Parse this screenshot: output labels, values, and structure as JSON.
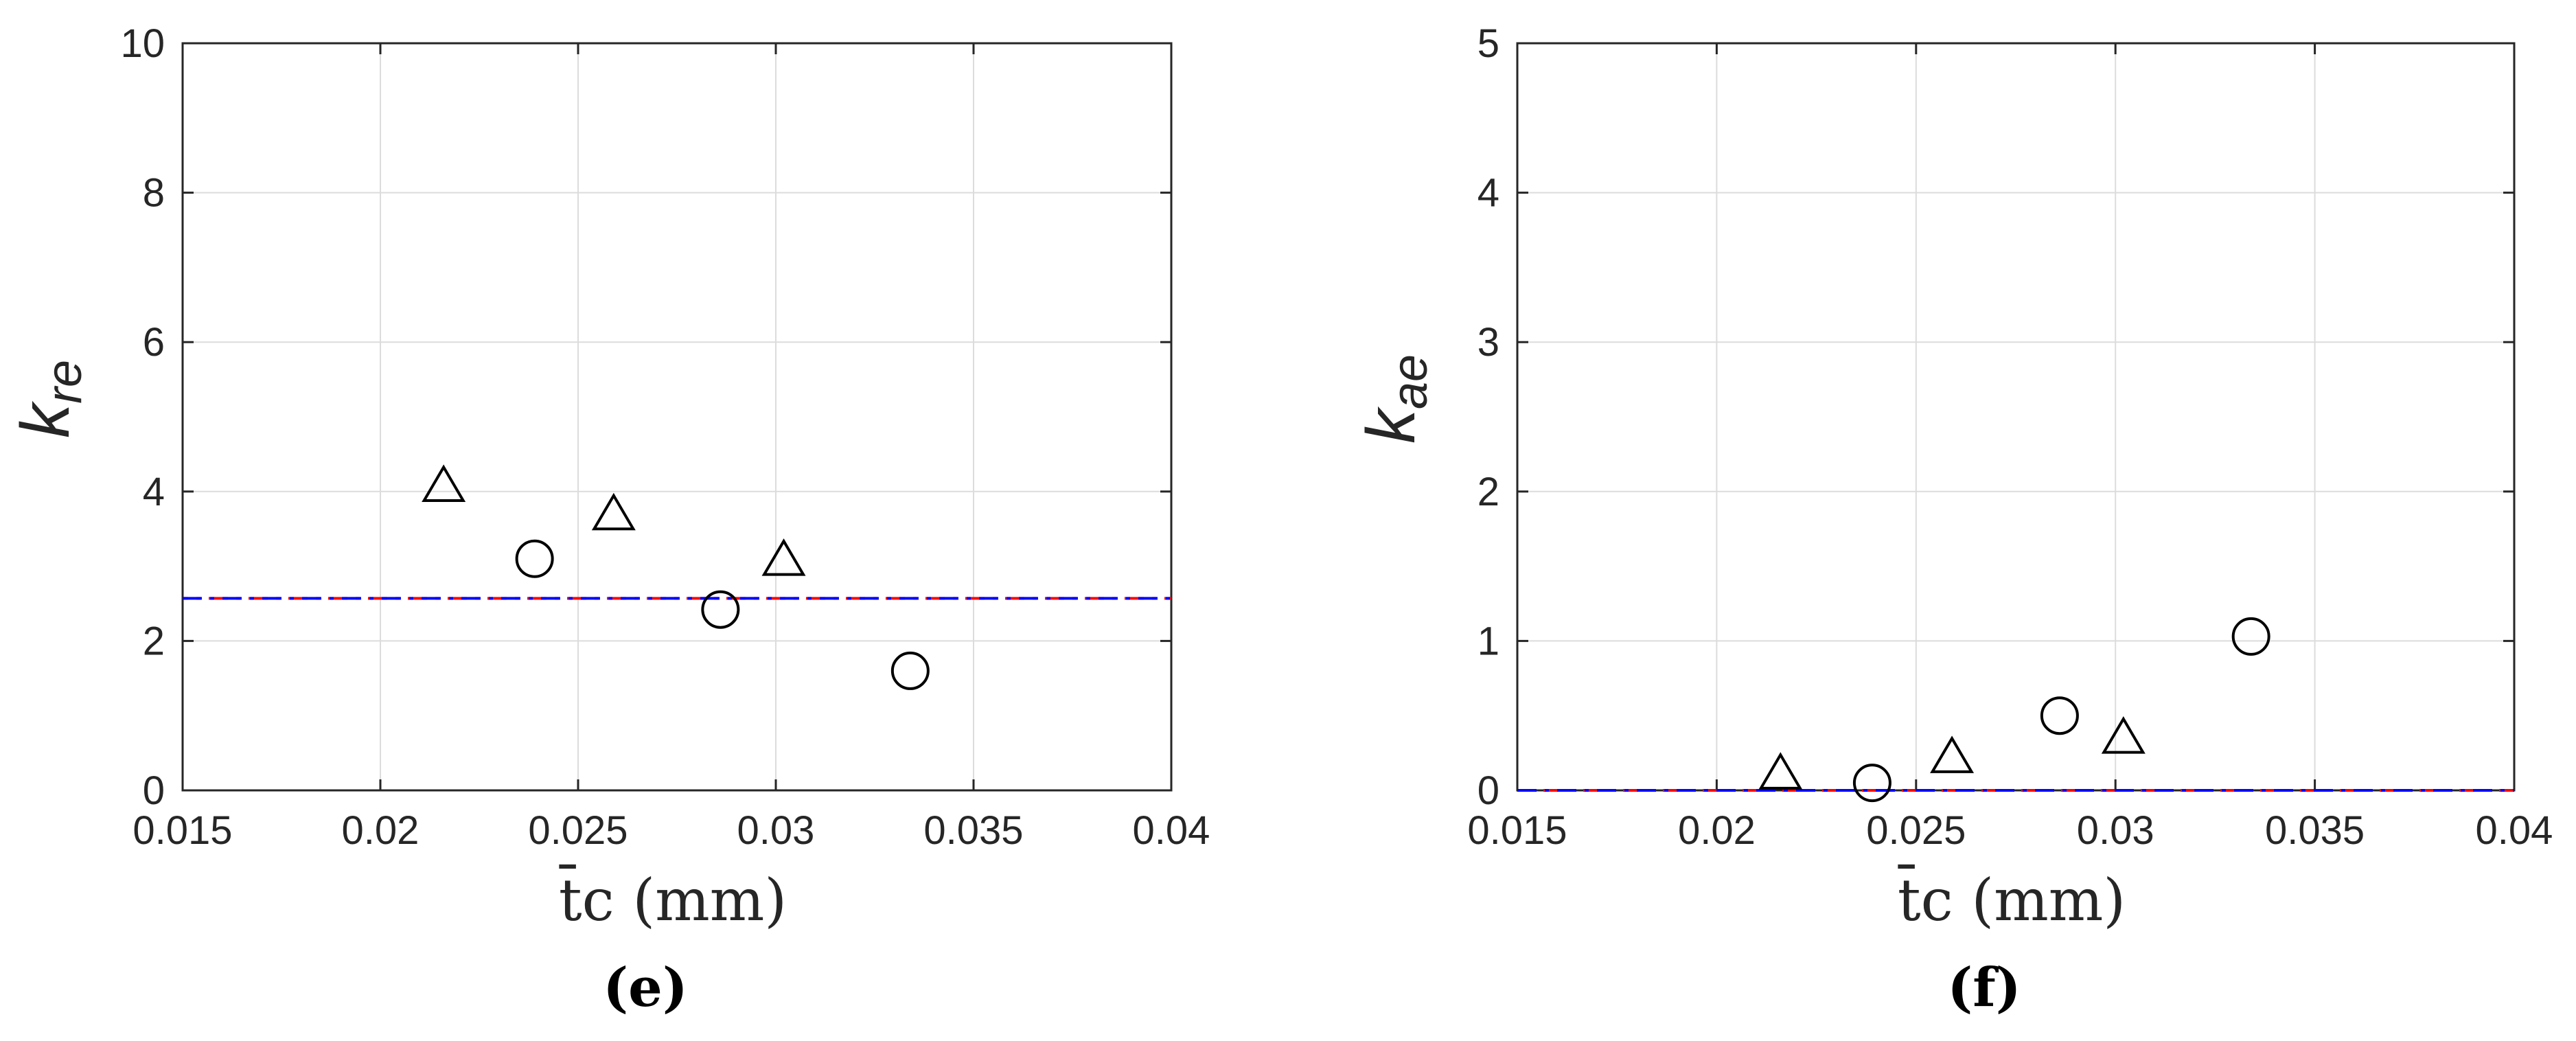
{
  "chart_data": [
    {
      "type": "scatter",
      "panel_label": "(e)",
      "xlabel": "t̄c (mm)",
      "ylabel": {
        "base": "k",
        "sub": "re"
      },
      "xlim": [
        0.015,
        0.04
      ],
      "ylim": [
        0,
        10
      ],
      "xticks": [
        "0.015",
        "0.02",
        "0.025",
        "0.03",
        "0.035",
        "0.04"
      ],
      "yticks": [
        "0",
        "2",
        "4",
        "6",
        "8",
        "10"
      ],
      "grid": true,
      "series": [
        {
          "marker": "triangle",
          "color": "#000000",
          "x": [
            0.0216,
            0.0259,
            0.0302
          ],
          "y": [
            4.05,
            3.67,
            3.06
          ]
        },
        {
          "marker": "circle",
          "color": "#000000",
          "x": [
            0.0239,
            0.0286,
            0.0334
          ],
          "y": [
            3.1,
            2.42,
            1.6
          ]
        }
      ],
      "reference_lines": [
        {
          "y": 2.57,
          "style": "dash-dot",
          "colors": [
            "#0000ff",
            "#ff0000"
          ]
        }
      ]
    },
    {
      "type": "scatter",
      "panel_label": "(f)",
      "xlabel": "t̄c (mm)",
      "ylabel": {
        "base": "k",
        "sub": "ae"
      },
      "xlim": [
        0.015,
        0.04
      ],
      "ylim": [
        0,
        5
      ],
      "xticks": [
        "0.015",
        "0.02",
        "0.025",
        "0.03",
        "0.035",
        "0.04"
      ],
      "yticks": [
        "0",
        "1",
        "2",
        "3",
        "4",
        "5"
      ],
      "grid": true,
      "series": [
        {
          "marker": "triangle",
          "color": "#000000",
          "x": [
            0.0216,
            0.0259,
            0.0302
          ],
          "y": [
            0.1,
            0.21,
            0.34
          ]
        },
        {
          "marker": "circle",
          "color": "#000000",
          "x": [
            0.0239,
            0.0286,
            0.0334
          ],
          "y": [
            0.05,
            0.5,
            1.03
          ]
        }
      ],
      "reference_lines": [
        {
          "y": 0,
          "style": "dash-dot",
          "colors": [
            "#0000ff",
            "#ff0000"
          ]
        }
      ]
    }
  ]
}
